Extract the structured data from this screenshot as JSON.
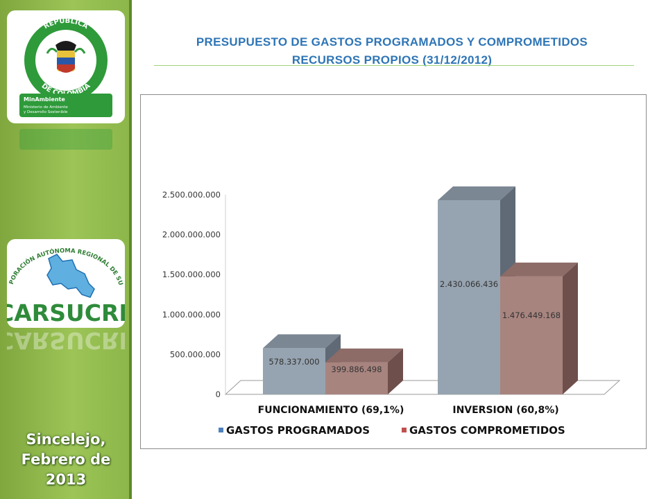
{
  "sidebar": {
    "ministry_logo": {
      "seal_text_top": "REPÚBLICA",
      "seal_text_bottom": "DE COLOMBIA",
      "brand": "MinAmbiente",
      "subtitle_line1": "Ministerio de Ambiente",
      "subtitle_line2": "y Desarrollo Sostenible"
    },
    "carsucre_logo": {
      "arc_text": "CORPORACIÓN AUTÓNOMA REGIONAL DE SUCRE",
      "name": "CARSUCRE"
    },
    "location_line1": "Sincelejo,",
    "location_line2": "Febrero de",
    "location_line3": "2013"
  },
  "header": {
    "title_line1": "PRESUPUESTO DE GASTOS PROGRAMADOS Y COMPROMETIDOS",
    "title_line2": "RECURSOS PROPIOS (31/12/2012)"
  },
  "colors": {
    "sidebar": "#8cb64a",
    "title": "#2e75b6",
    "programados": "#96a3b0",
    "comprometidos": "#a8847f"
  },
  "chart_data": {
    "type": "bar",
    "categories": [
      "FUNCIONAMIENTO (69,1%)",
      "INVERSION (60,8%)"
    ],
    "series": [
      {
        "name": "GASTOS PROGRAMADOS",
        "values": [
          578337000,
          2430066436
        ],
        "labels": [
          "578.337.000",
          "2.430.066.436"
        ]
      },
      {
        "name": "GASTOS COMPROMETIDOS",
        "values": [
          399886498,
          1476449168
        ],
        "labels": [
          "399.886.498",
          "1.476.449.168"
        ]
      }
    ],
    "yticks": [
      "0",
      "500.000.000",
      "1.000.000.000",
      "1.500.000.000",
      "2.000.000.000",
      "2.500.000.000"
    ],
    "ylim": [
      0,
      2500000000
    ],
    "grid": false,
    "legend_position": "bottom",
    "style": "3d-clustered-column"
  }
}
